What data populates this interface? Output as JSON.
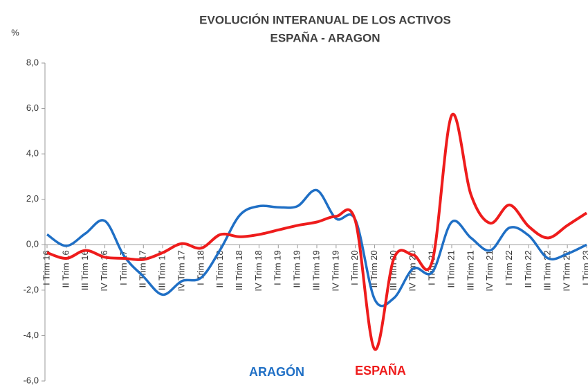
{
  "chart_data": {
    "type": "line",
    "title": "EVOLUCIÓN INTERANUAL DE LOS ACTIVOS",
    "subtitle": "ESPAÑA - ARAGON",
    "y_label": "%",
    "categories": [
      "I Trim 16",
      "II Trim 16",
      "III Trim 16",
      "IV Trim 16",
      "I Trim 17",
      "II Trim 17",
      "III Trim 17",
      "IV Trim 17",
      "I Trim 18",
      "II Trim 18",
      "III Trim 18",
      "IV Trim 18",
      "I Trim 19",
      "II Trim 19",
      "III Trim 19",
      "IV Trim 19",
      "I Trim 20",
      "II Trim 20",
      "III Trim 20",
      "IV Trim 20",
      "I Trim 21",
      "II Trim 21",
      "III Trim 21",
      "IV Trim 21",
      "I Trim 22",
      "II Trim 22",
      "III Trim 22",
      "IV Trim 22",
      "I Trim 23"
    ],
    "series": [
      {
        "name": "ARAGÓN",
        "color": "#1f6fc5",
        "values": [
          0.45,
          -0.05,
          0.5,
          1.05,
          -0.5,
          -1.4,
          -2.2,
          -1.6,
          -1.45,
          -0.2,
          1.3,
          1.7,
          1.65,
          1.7,
          2.4,
          1.15,
          1.1,
          -2.4,
          -2.35,
          -1.05,
          -1.2,
          1.0,
          0.3,
          -0.25,
          0.75,
          0.4,
          -0.6,
          -0.4,
          0.0
        ]
      },
      {
        "name": "ESPAÑA",
        "color": "#ee1c1c",
        "values": [
          -0.35,
          -0.6,
          -0.25,
          -0.55,
          -0.6,
          -0.65,
          -0.35,
          0.05,
          -0.15,
          0.45,
          0.35,
          0.45,
          0.65,
          0.85,
          1.0,
          1.25,
          1.05,
          -4.6,
          -0.6,
          -0.45,
          -0.7,
          5.7,
          2.2,
          0.95,
          1.75,
          0.8,
          0.3,
          0.85,
          1.4
        ]
      }
    ],
    "ylim": [
      -6,
      8
    ],
    "yticks": [
      {
        "value": -6,
        "label": "-6,0"
      },
      {
        "value": -4,
        "label": "-4,0"
      },
      {
        "value": -2,
        "label": "-2,0"
      },
      {
        "value": 0,
        "label": "0,0"
      },
      {
        "value": 2,
        "label": "2,0"
      },
      {
        "value": 4,
        "label": "4,0"
      },
      {
        "value": 6,
        "label": "6,0"
      },
      {
        "value": 8,
        "label": "8,0"
      }
    ]
  }
}
